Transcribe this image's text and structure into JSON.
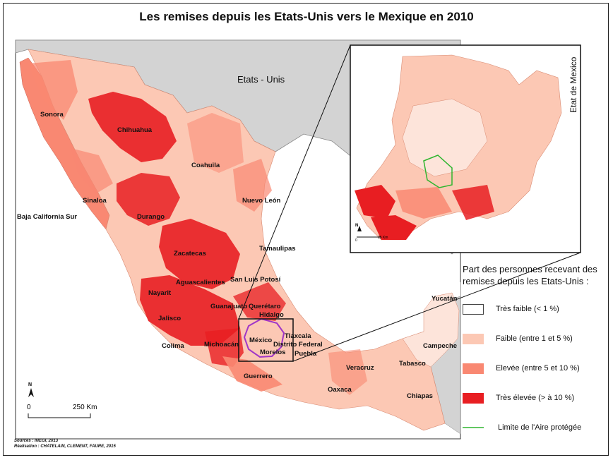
{
  "title": "Les remises depuis les Etats-Unis vers le Mexique en 2010",
  "colors": {
    "tres_faible": "#ffffff",
    "faible": "#fcc8b4",
    "elevee": "#f98872",
    "tres_elevee": "#e81e22",
    "ocean": "#ffffff",
    "land_us": "#d3d3d3",
    "protected_limit": "#2fb52f",
    "mexico_state_outline": "#a036c8"
  },
  "neighbor_label": "Etats - Unis",
  "states": [
    {
      "name": "Sonora"
    },
    {
      "name": "Chihuahua"
    },
    {
      "name": "Coahuila"
    },
    {
      "name": "Nuevo León"
    },
    {
      "name": "Sinaloa"
    },
    {
      "name": "Baja California Sur"
    },
    {
      "name": "Durango"
    },
    {
      "name": "Tamaulipas"
    },
    {
      "name": "Zacatecas"
    },
    {
      "name": "San Luis Potosí"
    },
    {
      "name": "Aguascalientes"
    },
    {
      "name": "Nayarit"
    },
    {
      "name": "Guanajuato"
    },
    {
      "name": "Querétaro"
    },
    {
      "name": "Hidalgo"
    },
    {
      "name": "Jalisco"
    },
    {
      "name": "Tlaxcala"
    },
    {
      "name": "México"
    },
    {
      "name": "Distrito Federal"
    },
    {
      "name": "Puebla"
    },
    {
      "name": "Morelos"
    },
    {
      "name": "Colima"
    },
    {
      "name": "Michoacán"
    },
    {
      "name": "Veracruz"
    },
    {
      "name": "Guerrero"
    },
    {
      "name": "Oaxaca"
    },
    {
      "name": "Chiapas"
    },
    {
      "name": "Tabasco"
    },
    {
      "name": "Campeche"
    },
    {
      "name": "Yucatán"
    }
  ],
  "inset": {
    "label": "Etat de Mexico",
    "north": "N",
    "scale_zero": "0",
    "scale_dist": "25 Km"
  },
  "legend": {
    "title": "Part des personnes recevant des remises depuis les Etats-Unis :",
    "items": [
      {
        "label": "Très faible (< 1 %)"
      },
      {
        "label": "Faible (entre 1 et 5 %)"
      },
      {
        "label": "Elevée (entre 5 et 10 %)"
      },
      {
        "label": "Très élevée (> à 10 %)"
      }
    ],
    "limit_label": "Limite de l'Aire protégée"
  },
  "scale": {
    "north": "N",
    "zero": "0",
    "distance": "250 Km"
  },
  "sources": "Sources : INEGI, 2013",
  "credits": "Réalisation : CHATELAIN, CLEMENT, FAURE, 2015"
}
